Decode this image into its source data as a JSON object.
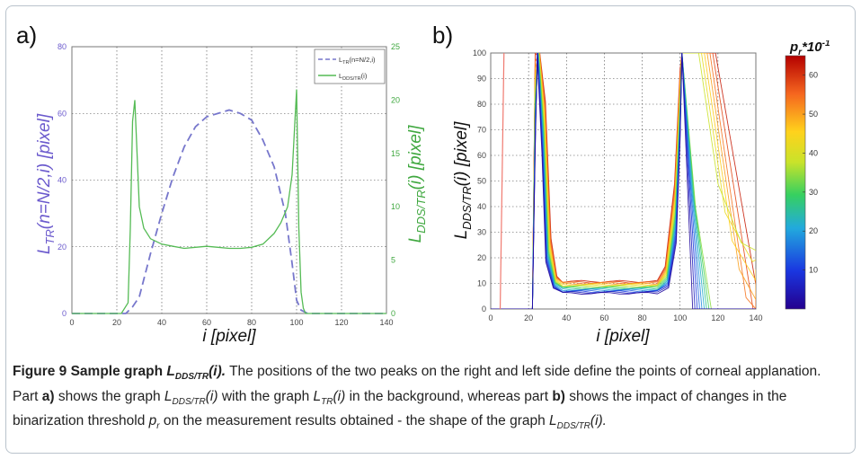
{
  "panel_a": {
    "label": "a)"
  },
  "panel_b": {
    "label": "b)"
  },
  "chart_data": [
    {
      "type": "line",
      "xlabel": "i [pixel]",
      "ylabel_left": "L_TR(n=N/2,i) [pixel]",
      "ylabel_right": "L_DDS/TR(i) [pixel]",
      "xlim": [
        0,
        140
      ],
      "ylim_left": [
        0,
        80
      ],
      "ylim_right": [
        0,
        25
      ],
      "xticks": [
        0,
        20,
        40,
        60,
        80,
        100,
        120,
        140
      ],
      "yticks_left": [
        0,
        20,
        40,
        60,
        80
      ],
      "yticks_right": [
        0,
        5,
        10,
        15,
        20,
        25
      ],
      "grid": true,
      "legend_position": "top-right",
      "series": [
        {
          "name": "L_TR(n=N/2,i)",
          "axis": "left",
          "color": "#7777cc",
          "style": "dashed",
          "x": [
            0,
            20,
            24,
            27,
            30,
            35,
            40,
            45,
            50,
            55,
            60,
            65,
            70,
            75,
            80,
            85,
            90,
            95,
            98,
            100,
            102,
            105,
            110,
            140
          ],
          "y": [
            0,
            0,
            0,
            2,
            5,
            18,
            30,
            41,
            50,
            56,
            59,
            60,
            61,
            60,
            58,
            52,
            44,
            30,
            15,
            4,
            1,
            0,
            0,
            0
          ]
        },
        {
          "name": "L_DDS/TR(i)",
          "axis": "right",
          "color": "#55bb55",
          "style": "solid",
          "x": [
            0,
            22,
            25,
            26,
            27,
            28,
            29,
            30,
            32,
            35,
            40,
            45,
            50,
            55,
            60,
            65,
            70,
            75,
            80,
            85,
            90,
            93,
            96,
            98,
            99,
            100,
            101,
            102,
            103,
            104,
            106,
            110,
            140
          ],
          "y": [
            0,
            0,
            1,
            8,
            18,
            20,
            15,
            10,
            8,
            7,
            6.5,
            6.3,
            6.1,
            6.2,
            6.3,
            6.2,
            6.1,
            6.1,
            6.2,
            6.5,
            7.5,
            8.5,
            10,
            13,
            17,
            21,
            8,
            2,
            0.5,
            0,
            0,
            0,
            0
          ]
        }
      ]
    },
    {
      "type": "line",
      "xlabel": "i [pixel]",
      "ylabel": "L_DDS/TR(i) [pixel]",
      "xlim": [
        0,
        140
      ],
      "ylim": [
        0,
        100
      ],
      "xticks": [
        0,
        20,
        40,
        60,
        80,
        100,
        120,
        140
      ],
      "yticks": [
        0,
        10,
        20,
        30,
        40,
        50,
        60,
        70,
        80,
        90,
        100
      ],
      "grid": true,
      "colorbar": {
        "label": "p_r*10^-1",
        "min": 0,
        "max": 65,
        "ticks": [
          10,
          20,
          30,
          40,
          50,
          60
        ]
      },
      "series_params": [
        2,
        6,
        10,
        14,
        18,
        22,
        26,
        30,
        34,
        38,
        42,
        46,
        50,
        54,
        58,
        62
      ]
    }
  ],
  "caption": {
    "figure_label": "Figure 9 Sample graph ",
    "figure_symbol": "L",
    "figure_symbol_sub": "DDS/TR",
    "figure_symbol_arg": "(i).",
    "sentence1": " The positions of the two peaks on the right and left side define the points of corneal applanation. Part ",
    "part_a": "a)",
    "sentence2": " shows the graph ",
    "sym1": "L",
    "sym1_sub": "DDS/TR",
    "sym1_arg": "(i)",
    "sentence3": " with the graph ",
    "sym2": "L",
    "sym2_sub": "TR",
    "sym2_arg": "(i)",
    "sentence4": " in the background, whereas part ",
    "part_b": "b)",
    "sentence5": " shows the impact of changes in the binarization threshold ",
    "sym3": "p",
    "sym3_sub": "r",
    "sentence6": " on the measurement results obtained - the shape of the graph ",
    "sym4": "L",
    "sym4_sub": "DDS/TR",
    "sym4_arg": "(i)."
  }
}
